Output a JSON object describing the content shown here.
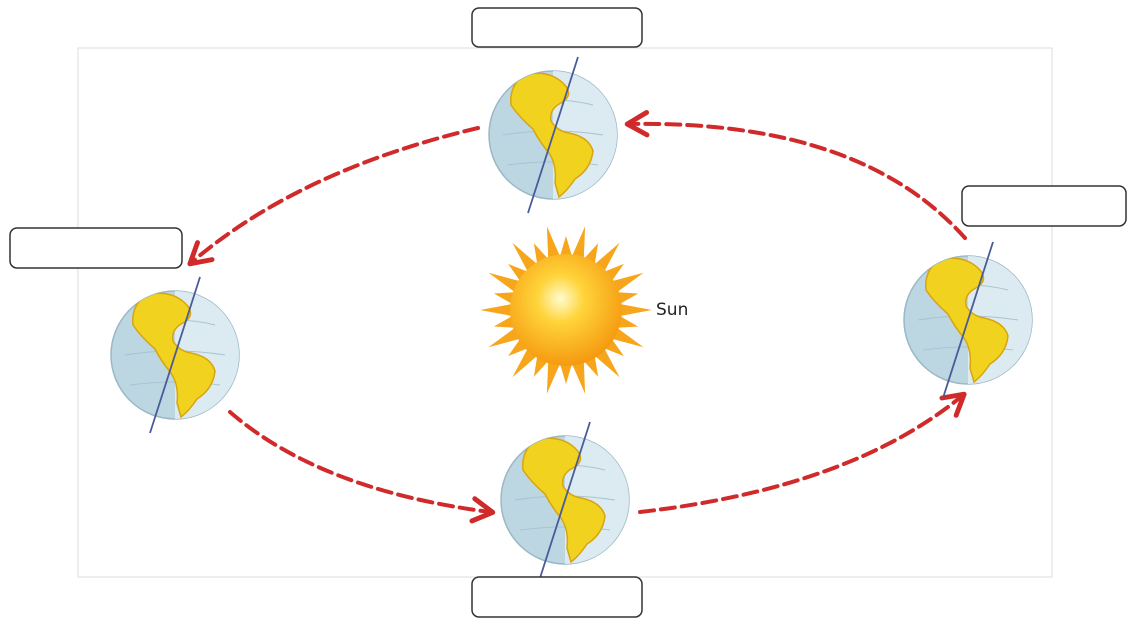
{
  "diagram": {
    "center_label": "Sun"
  }
}
